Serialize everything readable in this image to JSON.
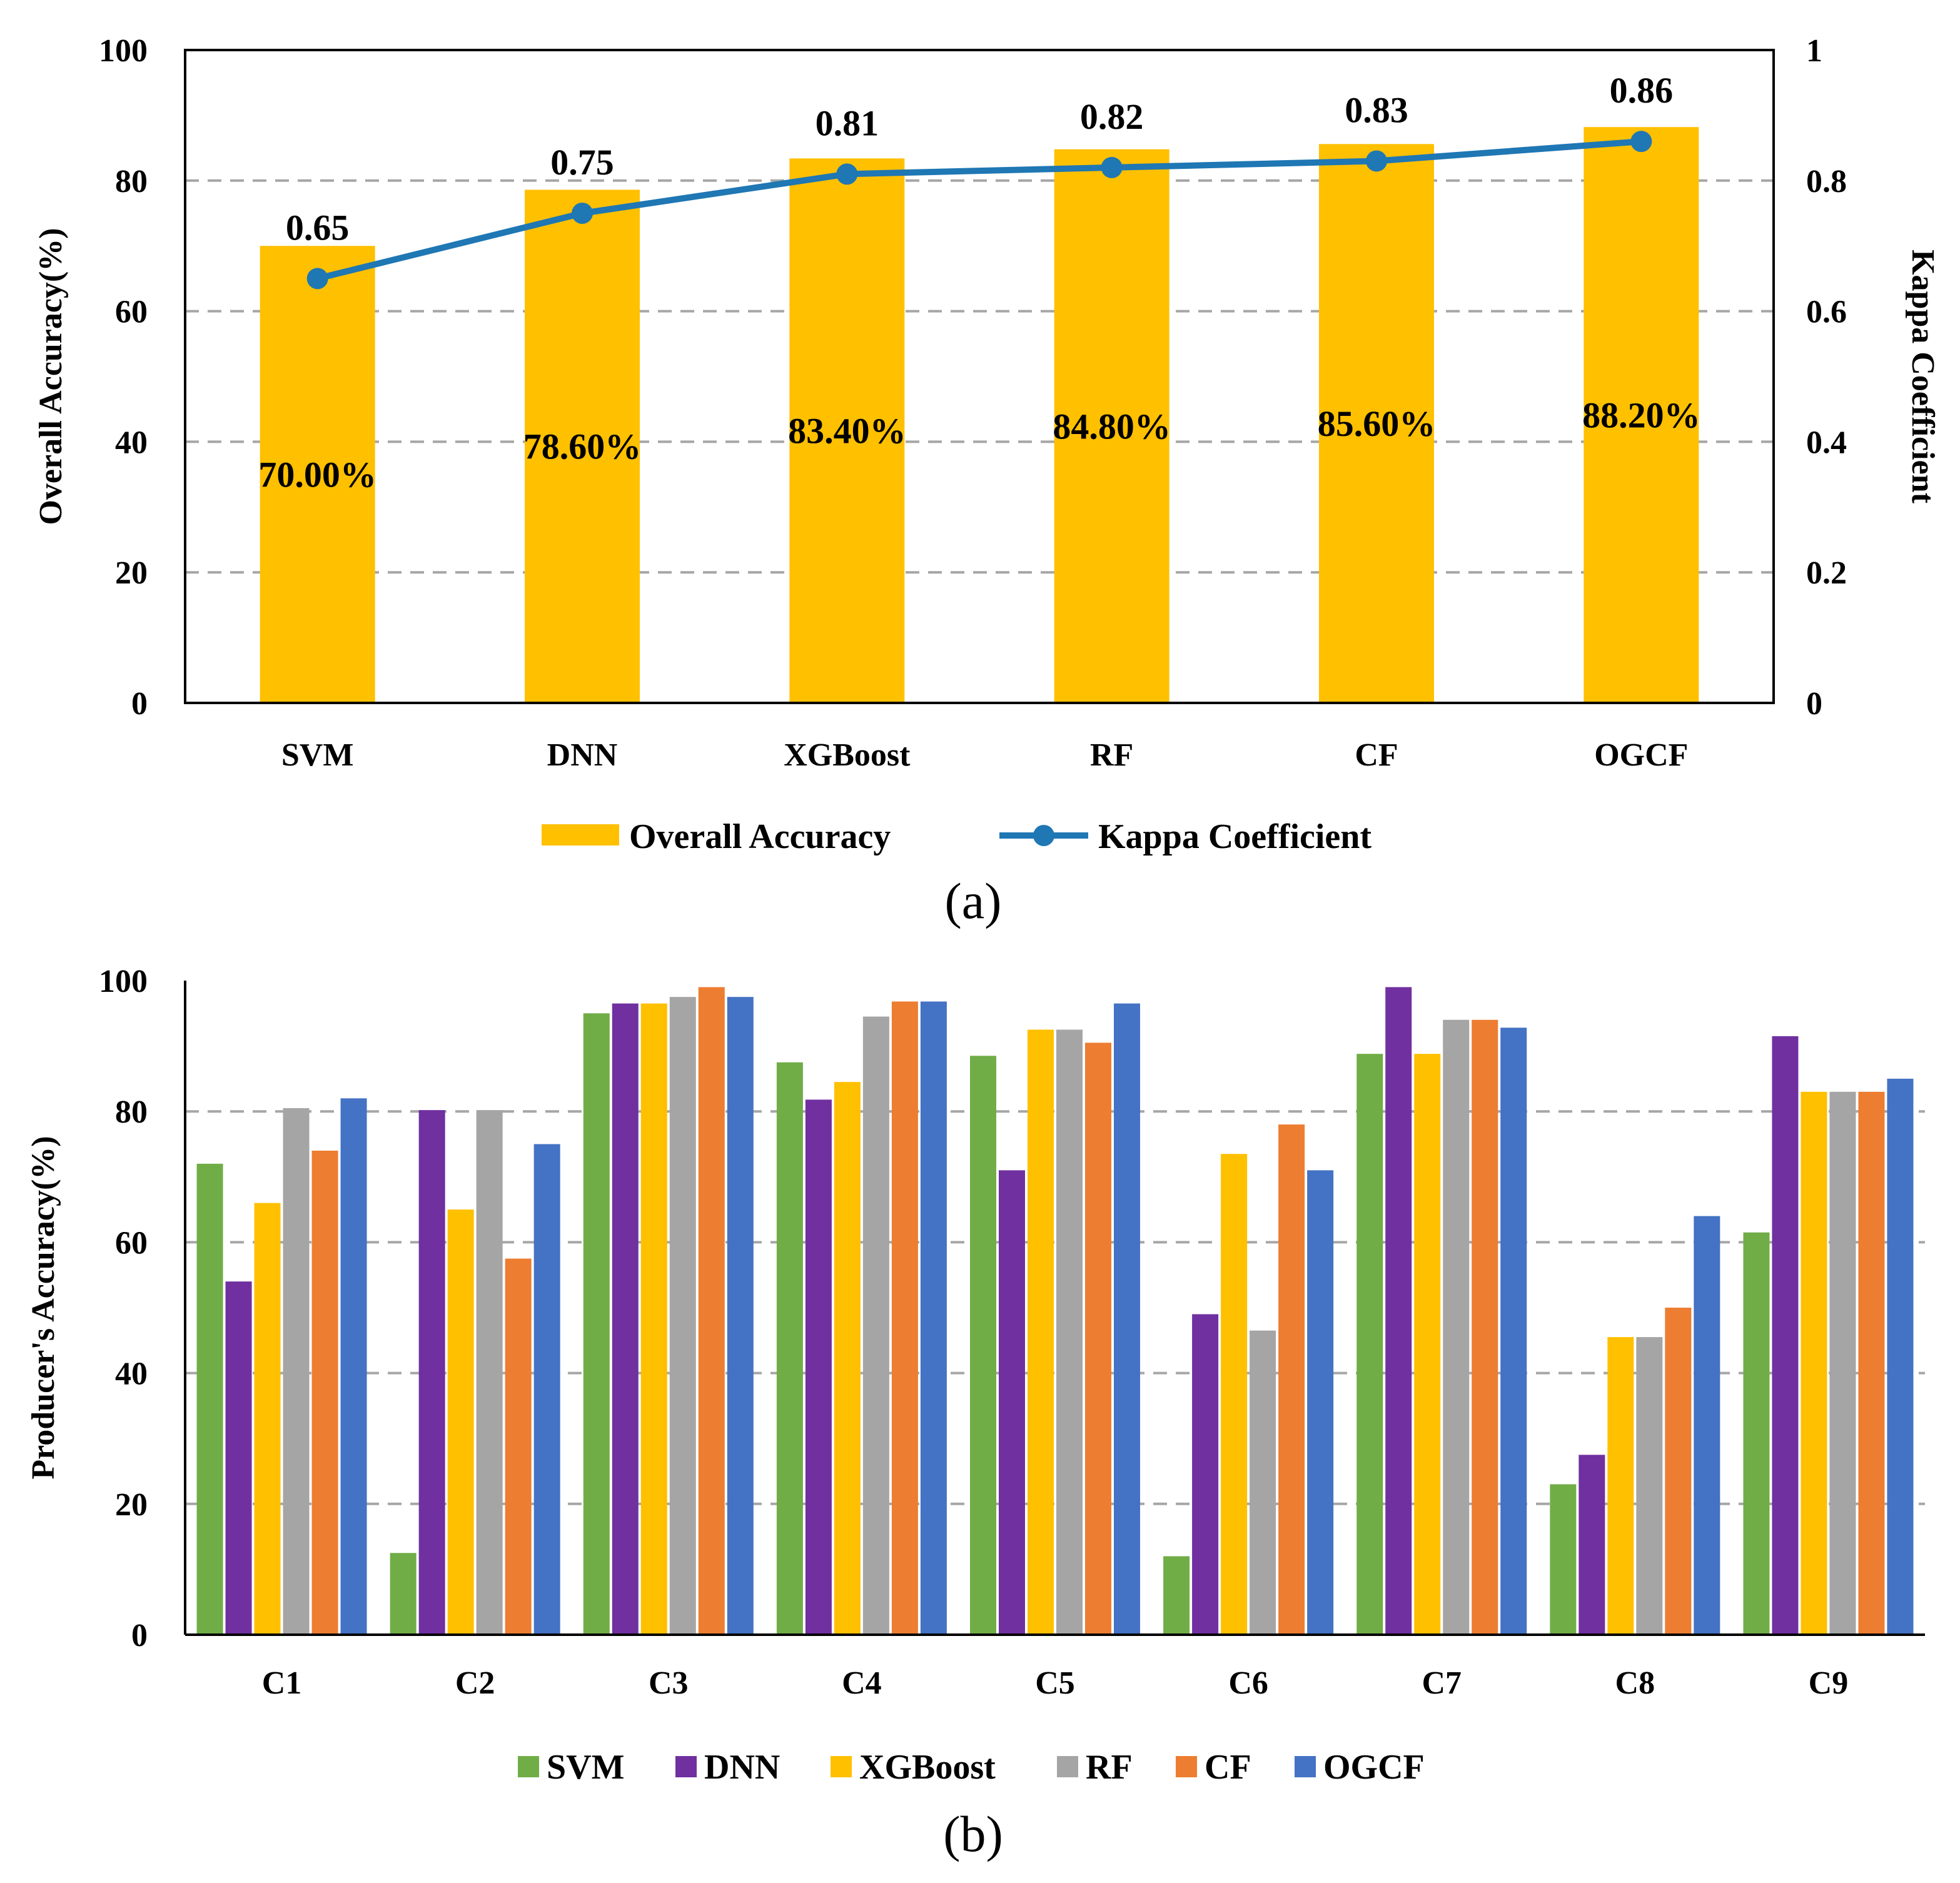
{
  "chart_data": [
    {
      "type": "bar+line",
      "panel_label": "(a)",
      "categories": [
        "SVM",
        "DNN",
        "XGBoost",
        "RF",
        "CF",
        "OGCF"
      ],
      "bar_series": {
        "name": "Overall Accuracy",
        "color": "#FFC000",
        "values": [
          70.0,
          78.6,
          83.4,
          84.8,
          85.6,
          88.2
        ],
        "labels": [
          "70.00%",
          "78.60%",
          "83.40%",
          "84.80%",
          "85.60%",
          "88.20%"
        ]
      },
      "line_series": {
        "name": "Kappa Coefficient",
        "color": "#1F77B4",
        "values": [
          0.65,
          0.75,
          0.81,
          0.82,
          0.83,
          0.86
        ],
        "labels": [
          "0.65",
          "0.75",
          "0.81",
          "0.82",
          "0.83",
          "0.86"
        ]
      },
      "ylabel": "Overall Accuracy(%)",
      "y2label": "Kappa Coefficient",
      "ylim": [
        0,
        100
      ],
      "y2lim": [
        0,
        1
      ],
      "yticks": [
        "0",
        "20",
        "40",
        "60",
        "80",
        "100"
      ],
      "y2ticks": [
        "0",
        "0.2",
        "0.4",
        "0.6",
        "0.8",
        "1"
      ],
      "grid": true,
      "legend": "bottom"
    },
    {
      "type": "bar",
      "panel_label": "(b)",
      "categories": [
        "C1",
        "C2",
        "C3",
        "C4",
        "C5",
        "C6",
        "C7",
        "C8",
        "C9"
      ],
      "series": [
        {
          "name": "SVM",
          "color": "#70AD47",
          "values": [
            72,
            12.5,
            95,
            87.5,
            88.5,
            12,
            88.8,
            23,
            61.5
          ]
        },
        {
          "name": "DNN",
          "color": "#7030A0",
          "values": [
            54,
            80.2,
            96.5,
            81.8,
            71,
            49,
            99,
            27.5,
            91.5
          ]
        },
        {
          "name": "XGBoost",
          "color": "#FFC000",
          "values": [
            66,
            65,
            96.5,
            84.5,
            92.5,
            73.5,
            88.8,
            45.5,
            83
          ]
        },
        {
          "name": "RF",
          "color": "#A5A5A5",
          "values": [
            80.5,
            80.2,
            97.5,
            94.5,
            92.5,
            46.5,
            94,
            45.5,
            83
          ]
        },
        {
          "name": "CF",
          "color": "#ED7D31",
          "values": [
            74,
            57.5,
            99,
            96.8,
            90.5,
            78,
            94,
            50,
            83
          ]
        },
        {
          "name": "OGCF",
          "color": "#4472C4",
          "values": [
            82,
            75,
            97.5,
            96.8,
            96.5,
            71,
            92.8,
            64,
            85
          ]
        }
      ],
      "ylabel": "Producer's Accuracy(%)",
      "ylim": [
        0,
        100
      ],
      "yticks": [
        "0",
        "20",
        "40",
        "60",
        "80",
        "100"
      ],
      "grid": true,
      "legend": "bottom"
    }
  ]
}
